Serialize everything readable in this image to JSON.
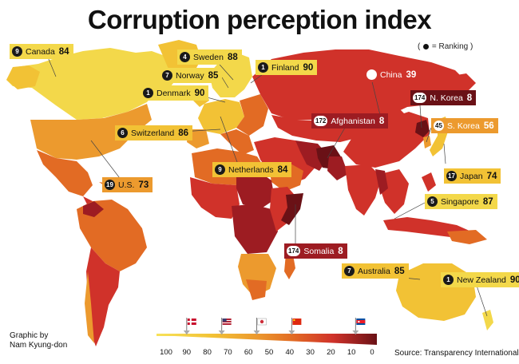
{
  "title": "Corruption perception index",
  "ranking_note": {
    "prefix": "(",
    "suffix": "= Ranking )"
  },
  "credit": {
    "line1": "Graphic by",
    "line2": "Nam Kyung-don"
  },
  "source": "Source: Transparency International",
  "colors": {
    "lightest": "#f3d84a",
    "light": "#f2c235",
    "orange": "#ec9a2e",
    "deep_orange": "#e26b24",
    "red": "#d0322a",
    "dark_red": "#9d1c22",
    "darkest": "#6a1116",
    "ocean": "#ffffff"
  },
  "labels": [
    {
      "name": "label-canada",
      "rank": "9",
      "country": "Canada",
      "score": "84"
    },
    {
      "name": "label-sweden",
      "rank": "4",
      "country": "Sweden",
      "score": "88"
    },
    {
      "name": "label-finland",
      "rank": "1",
      "country": "Finland",
      "score": "90"
    },
    {
      "name": "label-norway",
      "rank": "7",
      "country": "Norway",
      "score": "85"
    },
    {
      "name": "label-denmark",
      "rank": "1",
      "country": "Denmark",
      "score": "90"
    },
    {
      "name": "label-china",
      "rank": "",
      "country": "China",
      "score": "39"
    },
    {
      "name": "label-north-korea",
      "rank": "174",
      "country": "N. Korea",
      "score": "8"
    },
    {
      "name": "label-afghanistan",
      "rank": "172",
      "country": "Afghanistan",
      "score": "8"
    },
    {
      "name": "label-switzerland",
      "rank": "6",
      "country": "Switzerland",
      "score": "86"
    },
    {
      "name": "label-south-korea",
      "rank": "45",
      "country": "S. Korea",
      "score": "56"
    },
    {
      "name": "label-netherlands",
      "rank": "9",
      "country": "Netherlands",
      "score": "84"
    },
    {
      "name": "label-us",
      "rank": "19",
      "country": "U.S.",
      "score": "73"
    },
    {
      "name": "label-japan",
      "rank": "17",
      "country": "Japan",
      "score": "74"
    },
    {
      "name": "label-singapore",
      "rank": "5",
      "country": "Singapore",
      "score": "87"
    },
    {
      "name": "label-somalia",
      "rank": "174",
      "country": "Somalia",
      "score": "8"
    },
    {
      "name": "label-australia",
      "rank": "7",
      "country": "Australia",
      "score": "85"
    },
    {
      "name": "label-new-zealand",
      "rank": "1",
      "country": "New Zealand",
      "score": "90"
    }
  ],
  "legend": {
    "ticks": [
      "100",
      "90",
      "80",
      "70",
      "60",
      "50",
      "40",
      "30",
      "20",
      "10",
      "0"
    ],
    "flags": [
      {
        "name": "denmark-flag",
        "value": 90
      },
      {
        "name": "us-flag",
        "value": 73
      },
      {
        "name": "south-korea-flag",
        "value": 56
      },
      {
        "name": "china-flag",
        "value": 39
      },
      {
        "name": "north-korea-flag",
        "value": 8
      }
    ]
  }
}
